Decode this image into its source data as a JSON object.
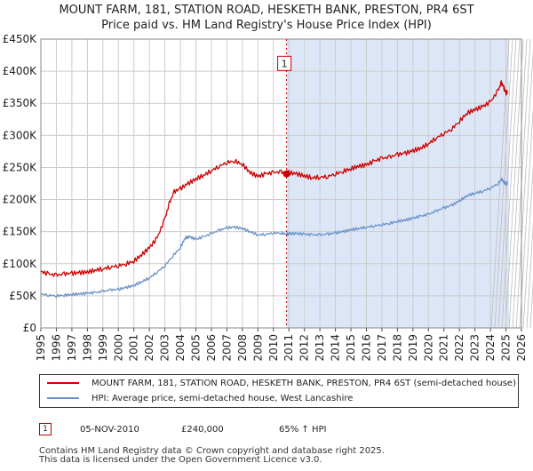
{
  "title_line1": "MOUNT FARM, 181, STATION ROAD, HESKETH BANK, PRESTON, PR4 6ST",
  "title_line2": "Price paid vs. HM Land Registry's House Price Index (HPI)",
  "colors": {
    "property": "#cc0000",
    "hpi": "#6b93c8",
    "shade": "#dde6f7",
    "grid": "#cccccc"
  },
  "chart_data": {
    "type": "line",
    "title": "Price paid vs. HM Land Registry's House Price Index (HPI)",
    "xlabel": "",
    "ylabel": "",
    "xlim": [
      1995,
      2026
    ],
    "ylim": [
      0,
      450000
    ],
    "x_ticks": [
      "1995",
      "1996",
      "1997",
      "1998",
      "1999",
      "2000",
      "2001",
      "2002",
      "2003",
      "2004",
      "2005",
      "2006",
      "2007",
      "2008",
      "2009",
      "2010",
      "2011",
      "2012",
      "2013",
      "2014",
      "2015",
      "2016",
      "2017",
      "2018",
      "2019",
      "2020",
      "2021",
      "2022",
      "2023",
      "2024",
      "2025",
      "2026"
    ],
    "y_ticks": [
      {
        "value": 0,
        "label": "£0"
      },
      {
        "value": 50000,
        "label": "£50K"
      },
      {
        "value": 100000,
        "label": "£100K"
      },
      {
        "value": 150000,
        "label": "£150K"
      },
      {
        "value": 200000,
        "label": "£200K"
      },
      {
        "value": 250000,
        "label": "£250K"
      },
      {
        "value": 300000,
        "label": "£300K"
      },
      {
        "value": 350000,
        "label": "£350K"
      },
      {
        "value": 400000,
        "label": "£400K"
      },
      {
        "value": 450000,
        "label": "£450K"
      }
    ],
    "grid": true,
    "shaded_region": [
      2010.85,
      2025.2
    ],
    "series": [
      {
        "name": "MOUNT FARM, 181, STATION ROAD, HESKETH BANK, PRESTON, PR4 6ST (semi-detached house)",
        "color": "#cc0000",
        "points": [
          [
            1995,
            88000
          ],
          [
            1995.5,
            84000
          ],
          [
            1996,
            82000
          ],
          [
            1996.5,
            84000
          ],
          [
            1997,
            85000
          ],
          [
            1997.5,
            86000
          ],
          [
            1998,
            87000
          ],
          [
            1998.5,
            90000
          ],
          [
            1999,
            92000
          ],
          [
            1999.5,
            95000
          ],
          [
            2000,
            97000
          ],
          [
            2000.5,
            100000
          ],
          [
            2001,
            104000
          ],
          [
            2001.5,
            114000
          ],
          [
            2002,
            125000
          ],
          [
            2002.5,
            140000
          ],
          [
            2003,
            170000
          ],
          [
            2003.3,
            195000
          ],
          [
            2003.6,
            212000
          ],
          [
            2004,
            217000
          ],
          [
            2004.5,
            225000
          ],
          [
            2005,
            232000
          ],
          [
            2005.5,
            238000
          ],
          [
            2006,
            245000
          ],
          [
            2006.5,
            252000
          ],
          [
            2007,
            258000
          ],
          [
            2007.5,
            260000
          ],
          [
            2008,
            255000
          ],
          [
            2008.5,
            242000
          ],
          [
            2009,
            236000
          ],
          [
            2009.5,
            240000
          ],
          [
            2010,
            242000
          ],
          [
            2010.5,
            243000
          ],
          [
            2010.85,
            240000
          ],
          [
            2011,
            242000
          ],
          [
            2011.5,
            240000
          ],
          [
            2012,
            237000
          ],
          [
            2012.5,
            234000
          ],
          [
            2013,
            235000
          ],
          [
            2013.5,
            236000
          ],
          [
            2014,
            240000
          ],
          [
            2014.5,
            244000
          ],
          [
            2015,
            248000
          ],
          [
            2015.5,
            252000
          ],
          [
            2016,
            254000
          ],
          [
            2016.5,
            260000
          ],
          [
            2017,
            264000
          ],
          [
            2017.5,
            266000
          ],
          [
            2018,
            270000
          ],
          [
            2018.5,
            272000
          ],
          [
            2019,
            276000
          ],
          [
            2019.5,
            280000
          ],
          [
            2020,
            287000
          ],
          [
            2020.5,
            296000
          ],
          [
            2021,
            303000
          ],
          [
            2021.5,
            310000
          ],
          [
            2022,
            322000
          ],
          [
            2022.5,
            335000
          ],
          [
            2023,
            340000
          ],
          [
            2023.5,
            345000
          ],
          [
            2024,
            352000
          ],
          [
            2024.5,
            370000
          ],
          [
            2024.7,
            382000
          ],
          [
            2024.85,
            375000
          ],
          [
            2025,
            366000
          ],
          [
            2025.1,
            368000
          ]
        ]
      },
      {
        "name": "HPI: Average price, semi-detached house, West Lancashire",
        "color": "#6b93c8",
        "points": [
          [
            1995,
            53000
          ],
          [
            1995.5,
            51000
          ],
          [
            1996,
            50000
          ],
          [
            1996.5,
            51000
          ],
          [
            1997,
            52000
          ],
          [
            1997.5,
            53000
          ],
          [
            1998,
            54000
          ],
          [
            1998.5,
            55000
          ],
          [
            1999,
            57000
          ],
          [
            1999.5,
            59000
          ],
          [
            2000,
            60000
          ],
          [
            2000.5,
            63000
          ],
          [
            2001,
            66000
          ],
          [
            2001.5,
            72000
          ],
          [
            2002,
            78000
          ],
          [
            2002.5,
            87000
          ],
          [
            2003,
            97000
          ],
          [
            2003.5,
            112000
          ],
          [
            2004,
            125000
          ],
          [
            2004.3,
            140000
          ],
          [
            2004.6,
            142000
          ],
          [
            2005,
            138000
          ],
          [
            2005.5,
            142000
          ],
          [
            2006,
            147000
          ],
          [
            2006.5,
            152000
          ],
          [
            2007,
            156000
          ],
          [
            2007.5,
            157000
          ],
          [
            2008,
            155000
          ],
          [
            2008.5,
            150000
          ],
          [
            2009,
            145000
          ],
          [
            2009.5,
            146000
          ],
          [
            2010,
            148000
          ],
          [
            2010.5,
            148000
          ],
          [
            2010.85,
            146000
          ],
          [
            2011,
            147000
          ],
          [
            2011.5,
            147000
          ],
          [
            2012,
            146000
          ],
          [
            2012.5,
            145000
          ],
          [
            2013,
            145000
          ],
          [
            2013.5,
            146000
          ],
          [
            2014,
            148000
          ],
          [
            2014.5,
            150000
          ],
          [
            2015,
            153000
          ],
          [
            2015.5,
            155000
          ],
          [
            2016,
            157000
          ],
          [
            2016.5,
            159000
          ],
          [
            2017,
            161000
          ],
          [
            2017.5,
            163000
          ],
          [
            2018,
            166000
          ],
          [
            2018.5,
            168000
          ],
          [
            2019,
            171000
          ],
          [
            2019.5,
            174000
          ],
          [
            2020,
            177000
          ],
          [
            2020.5,
            182000
          ],
          [
            2021,
            187000
          ],
          [
            2021.5,
            191000
          ],
          [
            2022,
            198000
          ],
          [
            2022.5,
            206000
          ],
          [
            2023,
            210000
          ],
          [
            2023.5,
            213000
          ],
          [
            2024,
            218000
          ],
          [
            2024.5,
            225000
          ],
          [
            2024.7,
            232000
          ],
          [
            2024.85,
            228000
          ],
          [
            2025,
            224000
          ],
          [
            2025.1,
            226000
          ]
        ]
      }
    ],
    "annotations": [
      {
        "label": "1",
        "x": 2010.85,
        "y": 240000
      }
    ]
  },
  "legend": {
    "property_label": "MOUNT FARM, 181, STATION ROAD, HESKETH BANK, PRESTON, PR4 6ST (semi-detached house)",
    "hpi_label": "HPI: Average price, semi-detached house, West Lancashire"
  },
  "transaction": {
    "badge": "1",
    "date": "05-NOV-2010",
    "price": "£240,000",
    "hpi_change": "65% ↑ HPI"
  },
  "footer": {
    "line1": "Contains HM Land Registry data © Crown copyright and database right 2025.",
    "line2": "This data is licensed under the Open Government Licence v3.0."
  }
}
